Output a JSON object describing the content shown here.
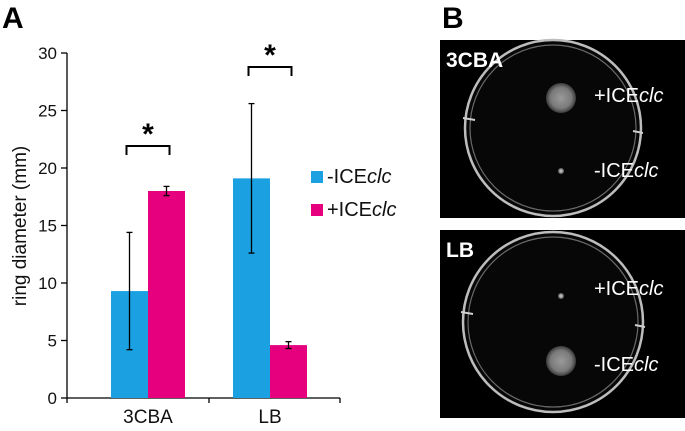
{
  "panel_a_letter": "A",
  "panel_b_letter": "B",
  "chart_data": {
    "type": "bar",
    "categories": [
      "3CBA",
      "LB"
    ],
    "series": [
      {
        "name": "-ICEclc",
        "name_prefix": "-ICE",
        "name_italic": "clc",
        "color": "#1ba1e2",
        "values": [
          9.3,
          19.1
        ],
        "error": [
          5.1,
          6.5
        ]
      },
      {
        "name": "+ICEclc",
        "name_prefix": "+ICE",
        "name_italic": "clc",
        "color": "#e6007e",
        "values": [
          18.0,
          4.6
        ],
        "error": [
          0.4,
          0.3
        ]
      }
    ],
    "ylabel": "ring diameter (mm)",
    "ylim": [
      0,
      30
    ],
    "yticks": [
      0,
      5,
      10,
      15,
      20,
      25,
      30
    ],
    "significance": [
      "*",
      "*"
    ],
    "legend_position": "right"
  },
  "plates": [
    {
      "label": "3CBA",
      "annotations": [
        {
          "prefix": "+ICE",
          "italic": "clc",
          "halo": "large"
        },
        {
          "prefix": "-ICE",
          "italic": "clc",
          "halo": "small"
        }
      ]
    },
    {
      "label": "LB",
      "annotations": [
        {
          "prefix": "+ICE",
          "italic": "clc",
          "halo": "small"
        },
        {
          "prefix": "-ICE",
          "italic": "clc",
          "halo": "large"
        }
      ]
    }
  ]
}
